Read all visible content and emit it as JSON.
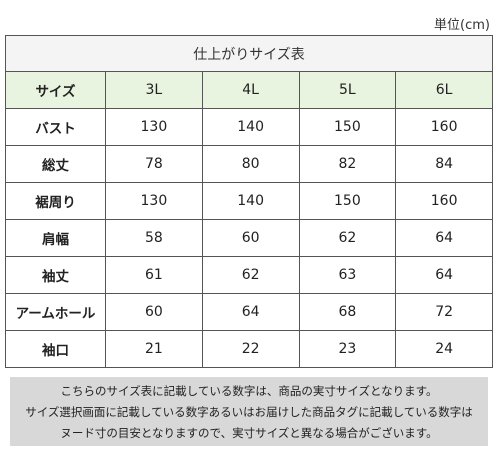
{
  "unit_label": "単位(cm)",
  "table": {
    "caption": "仕上がりサイズ表",
    "header": [
      "サイズ",
      "3L",
      "4L",
      "5L",
      "6L"
    ],
    "rows": [
      {
        "label": "バスト",
        "values": [
          "130",
          "140",
          "150",
          "160"
        ]
      },
      {
        "label": "総丈",
        "values": [
          "78",
          "80",
          "82",
          "84"
        ]
      },
      {
        "label": "裾周り",
        "values": [
          "130",
          "140",
          "150",
          "160"
        ]
      },
      {
        "label": "肩幅",
        "values": [
          "58",
          "60",
          "62",
          "64"
        ]
      },
      {
        "label": "袖丈",
        "values": [
          "61",
          "62",
          "63",
          "64"
        ]
      },
      {
        "label": "アームホール",
        "values": [
          "60",
          "64",
          "68",
          "72"
        ]
      },
      {
        "label": "袖口",
        "values": [
          "21",
          "22",
          "23",
          "24"
        ]
      }
    ]
  },
  "note": {
    "lines": [
      "こちらのサイズ表に記載している数字は、商品の実寸サイズとなります。",
      "サイズ選択画面に記載している数字あるいはお届けした商品タグに記載している数字は",
      "ヌード寸の目安となりますので、実寸サイズと異なる場合がございます。"
    ]
  }
}
